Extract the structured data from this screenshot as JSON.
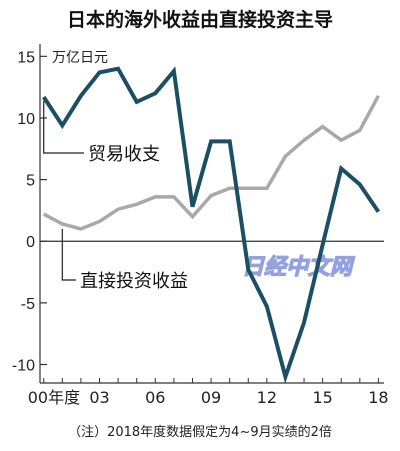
{
  "chart_data": {
    "type": "line",
    "title": "日本的海外收益由直接投资主导",
    "unit_label": "万亿日元",
    "note": "（注）2018年度数据假定为4~9月实绩的2倍",
    "watermark": "日经中文网",
    "x": [
      2000,
      2001,
      2002,
      2003,
      2004,
      2005,
      2006,
      2007,
      2008,
      2009,
      2010,
      2011,
      2012,
      2013,
      2014,
      2015,
      2016,
      2017,
      2018
    ],
    "x_ticks": [
      {
        "x": 2000,
        "label": "00年度"
      },
      {
        "x": 2003,
        "label": "03"
      },
      {
        "x": 2006,
        "label": "06"
      },
      {
        "x": 2009,
        "label": "09"
      },
      {
        "x": 2012,
        "label": "12"
      },
      {
        "x": 2015,
        "label": "15"
      },
      {
        "x": 2018,
        "label": "18"
      }
    ],
    "y_ticks": [
      15,
      10,
      5,
      0,
      -5,
      -10
    ],
    "ylim": [
      -11.5,
      16
    ],
    "xlim": [
      1999.8,
      2018.3
    ],
    "series": [
      {
        "name": "贸易收支",
        "color": "#1c4f63",
        "values": [
          11.7,
          9.4,
          11.8,
          13.7,
          14.0,
          11.3,
          12.0,
          13.8,
          2.8,
          8.1,
          8.1,
          -2.3,
          -5.3,
          -11.0,
          -6.6,
          -0.3,
          5.9,
          4.6,
          2.4
        ]
      },
      {
        "name": "直接投资收益",
        "color": "#a8a8a8",
        "values": [
          2.2,
          1.4,
          1.0,
          1.6,
          2.6,
          3.0,
          3.6,
          3.6,
          2.0,
          3.7,
          4.3,
          4.3,
          4.3,
          6.9,
          8.2,
          9.3,
          8.2,
          9.0,
          11.8
        ]
      }
    ],
    "grid": false
  }
}
